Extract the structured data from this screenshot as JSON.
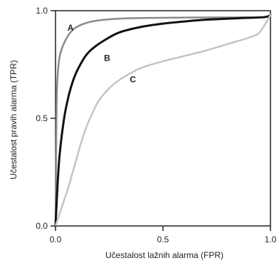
{
  "chart_data": {
    "type": "line",
    "xlabel": "Učestalost lažnih alarma (FPR)",
    "ylabel": "Učestalost pravih alarma (TPR)",
    "xlim": [
      0.0,
      1.0
    ],
    "ylim": [
      0.0,
      1.0
    ],
    "xticks": [
      0.0,
      0.5,
      1.0
    ],
    "xtick_labels": [
      "0.0",
      "0.5",
      "1.0"
    ],
    "yticks": [
      0.0,
      0.5,
      1.0
    ],
    "ytick_labels": [
      "0.0",
      "0.5",
      "1.0"
    ],
    "grid": false,
    "series": [
      {
        "name": "A",
        "color": "#8a8a8a",
        "x": [
          0.0,
          0.005,
          0.01,
          0.02,
          0.04,
          0.07,
          0.1,
          0.15,
          0.2,
          0.3,
          0.4,
          0.6,
          0.8,
          0.97,
          1.0
        ],
        "y": [
          0.0,
          0.55,
          0.7,
          0.79,
          0.85,
          0.9,
          0.925,
          0.945,
          0.955,
          0.963,
          0.966,
          0.968,
          0.969,
          0.97,
          0.98
        ]
      },
      {
        "name": "B",
        "color": "#111111",
        "x": [
          0.0,
          0.01,
          0.02,
          0.04,
          0.06,
          0.08,
          0.1,
          0.14,
          0.18,
          0.24,
          0.3,
          0.4,
          0.5,
          0.6,
          0.7,
          0.85,
          0.97,
          1.0
        ],
        "y": [
          0.0,
          0.2,
          0.34,
          0.5,
          0.6,
          0.67,
          0.72,
          0.79,
          0.83,
          0.87,
          0.9,
          0.925,
          0.94,
          0.95,
          0.958,
          0.965,
          0.97,
          0.98
        ]
      },
      {
        "name": "C",
        "color": "#c4c4c4",
        "x": [
          0.0,
          0.02,
          0.04,
          0.06,
          0.08,
          0.1,
          0.12,
          0.14,
          0.17,
          0.2,
          0.25,
          0.3,
          0.35,
          0.4,
          0.5,
          0.6,
          0.7,
          0.8,
          0.9,
          0.95,
          1.0
        ],
        "y": [
          0.0,
          0.06,
          0.12,
          0.18,
          0.25,
          0.32,
          0.39,
          0.45,
          0.52,
          0.58,
          0.64,
          0.68,
          0.71,
          0.735,
          0.765,
          0.79,
          0.815,
          0.845,
          0.875,
          0.9,
          0.98
        ]
      }
    ],
    "annotations": [
      {
        "text": "A",
        "x": 0.07,
        "y": 0.92
      },
      {
        "text": "B",
        "x": 0.24,
        "y": 0.78
      },
      {
        "text": "C",
        "x": 0.36,
        "y": 0.68
      }
    ]
  }
}
